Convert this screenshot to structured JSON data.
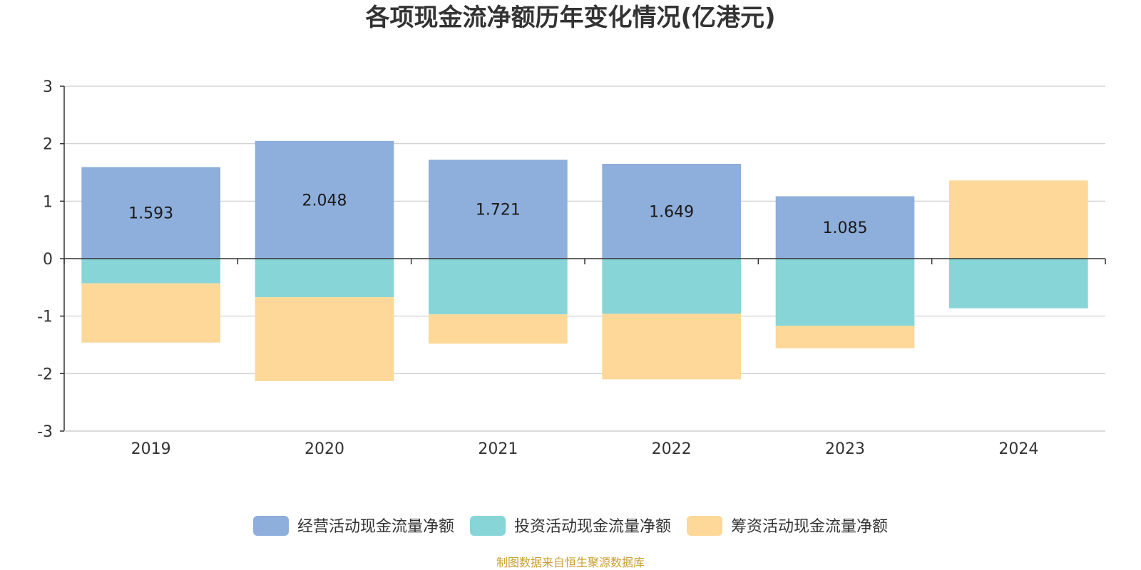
{
  "chart_data": {
    "type": "bar",
    "stacked": true,
    "title": "各项现金流净额历年变化情况(亿港元)",
    "categories": [
      "2019",
      "2020",
      "2021",
      "2022",
      "2023",
      "2024"
    ],
    "series": [
      {
        "name": "经营活动现金流量净额",
        "color": "#8eaedb",
        "values": [
          1.593,
          2.048,
          1.721,
          1.649,
          1.085,
          -0.004
        ],
        "labels": [
          "1.593",
          "2.048",
          "1.721",
          "1.649",
          "1.085",
          ""
        ]
      },
      {
        "name": "投资活动现金流量净额",
        "color": "#88d5d8",
        "values": [
          -0.43,
          -0.67,
          -0.97,
          -0.96,
          -1.17,
          -0.86
        ]
      },
      {
        "name": "筹资活动现金流量净额",
        "color": "#fdd899",
        "values": [
          -1.03,
          -1.46,
          -0.51,
          -1.14,
          -0.39,
          1.36
        ]
      }
    ],
    "ylim": [
      -3,
      3
    ],
    "yticks": [
      3,
      2,
      1,
      0,
      -1,
      -2,
      -3
    ],
    "grid": true,
    "legend_position": "bottom"
  },
  "source_note": "制图数据来自恒生聚源数据库"
}
